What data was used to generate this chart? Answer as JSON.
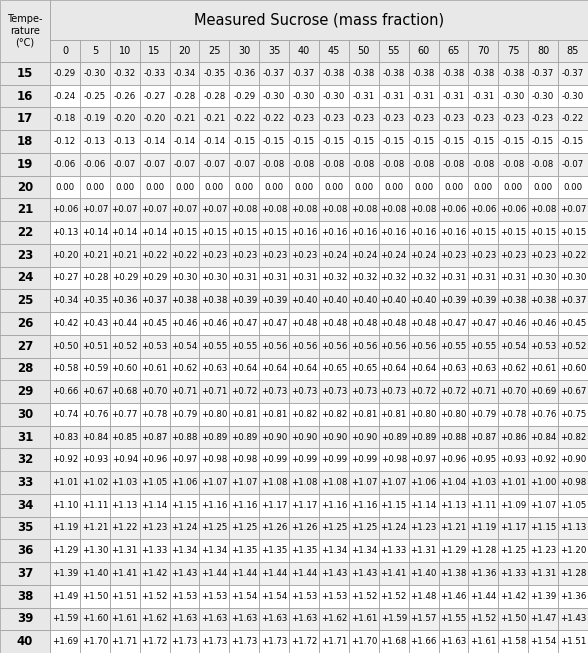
{
  "title": "Measured Sucrose (mass fraction)",
  "col_header_label": "Tempe-\nrature\n(°C)",
  "col_headers": [
    "0",
    "5",
    "10",
    "15",
    "20",
    "25",
    "30",
    "35",
    "40",
    "45",
    "50",
    "55",
    "60",
    "65",
    "70",
    "75",
    "80",
    "85"
  ],
  "row_headers": [
    "15",
    "16",
    "17",
    "18",
    "19",
    "20",
    "21",
    "22",
    "23",
    "24",
    "25",
    "26",
    "27",
    "28",
    "29",
    "30",
    "31",
    "32",
    "33",
    "34",
    "35",
    "36",
    "37",
    "38",
    "39",
    "40"
  ],
  "table_data": [
    [
      "-0.29",
      "-0.30",
      "-0.32",
      "-0.33",
      "-0.34",
      "-0.35",
      "-0.36",
      "-0.37",
      "-0.37",
      "-0.38",
      "-0.38",
      "-0.38",
      "-0.38",
      "-0.38",
      "-0.38",
      "-0.38",
      "-0.37",
      "-0.37"
    ],
    [
      "-0.24",
      "-0.25",
      "-0.26",
      "-0.27",
      "-0.28",
      "-0.28",
      "-0.29",
      "-0.30",
      "-0.30",
      "-0.30",
      "-0.31",
      "-0.31",
      "-0.31",
      "-0.31",
      "-0.31",
      "-0.30",
      "-0.30",
      "-0.30"
    ],
    [
      "-0.18",
      "-0.19",
      "-0.20",
      "-0.20",
      "-0.21",
      "-0.21",
      "-0.22",
      "-0.22",
      "-0.23",
      "-0.23",
      "-0.23",
      "-0.23",
      "-0.23",
      "-0.23",
      "-0.23",
      "-0.23",
      "-0.23",
      "-0.22"
    ],
    [
      "-0.12",
      "-0.13",
      "-0.13",
      "-0.14",
      "-0.14",
      "-0.14",
      "-0.15",
      "-0.15",
      "-0.15",
      "-0.15",
      "-0.15",
      "-0.15",
      "-0.15",
      "-0.15",
      "-0.15",
      "-0.15",
      "-0.15",
      "-0.15"
    ],
    [
      "-0.06",
      "-0.06",
      "-0.07",
      "-0.07",
      "-0.07",
      "-0.07",
      "-0.07",
      "-0.08",
      "-0.08",
      "-0.08",
      "-0.08",
      "-0.08",
      "-0.08",
      "-0.08",
      "-0.08",
      "-0.08",
      "-0.08",
      "-0.07"
    ],
    [
      "0.00",
      "0.00",
      "0.00",
      "0.00",
      "0.00",
      "0.00",
      "0.00",
      "0.00",
      "0.00",
      "0.00",
      "0.00",
      "0.00",
      "0.00",
      "0.00",
      "0.00",
      "0.00",
      "0.00",
      "0.00"
    ],
    [
      "+0.06",
      "+0.07",
      "+0.07",
      "+0.07",
      "+0.07",
      "+0.07",
      "+0.08",
      "+0.08",
      "+0.08",
      "+0.08",
      "+0.08",
      "+0.08",
      "+0.08",
      "+0.06",
      "+0.06",
      "+0.06",
      "+0.08",
      "+0.07"
    ],
    [
      "+0.13",
      "+0.14",
      "+0.14",
      "+0.14",
      "+0.15",
      "+0.15",
      "+0.15",
      "+0.15",
      "+0.16",
      "+0.16",
      "+0.16",
      "+0.16",
      "+0.16",
      "+0.16",
      "+0.15",
      "+0.15",
      "+0.15",
      "+0.15"
    ],
    [
      "+0.20",
      "+0.21",
      "+0.21",
      "+0.22",
      "+0.22",
      "+0.23",
      "+0.23",
      "+0.23",
      "+0.23",
      "+0.24",
      "+0.24",
      "+0.24",
      "+0.24",
      "+0.23",
      "+0.23",
      "+0.23",
      "+0.23",
      "+0.22"
    ],
    [
      "+0.27",
      "+0.28",
      "+0.29",
      "+0.29",
      "+0.30",
      "+0.30",
      "+0.31",
      "+0.31",
      "+0.31",
      "+0.32",
      "+0.32",
      "+0.32",
      "+0.32",
      "+0.31",
      "+0.31",
      "+0.31",
      "+0.30",
      "+0.30"
    ],
    [
      "+0.34",
      "+0.35",
      "+0.36",
      "+0.37",
      "+0.38",
      "+0.38",
      "+0.39",
      "+0.39",
      "+0.40",
      "+0.40",
      "+0.40",
      "+0.40",
      "+0.40",
      "+0.39",
      "+0.39",
      "+0.38",
      "+0.38",
      "+0.37"
    ],
    [
      "+0.42",
      "+0.43",
      "+0.44",
      "+0.45",
      "+0.46",
      "+0.46",
      "+0.47",
      "+0.47",
      "+0.48",
      "+0.48",
      "+0.48",
      "+0.48",
      "+0.48",
      "+0.47",
      "+0.47",
      "+0.46",
      "+0.46",
      "+0.45"
    ],
    [
      "+0.50",
      "+0.51",
      "+0.52",
      "+0.53",
      "+0.54",
      "+0.55",
      "+0.55",
      "+0.56",
      "+0.56",
      "+0.56",
      "+0.56",
      "+0.56",
      "+0.56",
      "+0.55",
      "+0.55",
      "+0.54",
      "+0.53",
      "+0.52"
    ],
    [
      "+0.58",
      "+0.59",
      "+0.60",
      "+0.61",
      "+0.62",
      "+0.63",
      "+0.64",
      "+0.64",
      "+0.64",
      "+0.65",
      "+0.65",
      "+0.64",
      "+0.64",
      "+0.63",
      "+0.63",
      "+0.62",
      "+0.61",
      "+0.60"
    ],
    [
      "+0.66",
      "+0.67",
      "+0.68",
      "+0.70",
      "+0.71",
      "+0.71",
      "+0.72",
      "+0.73",
      "+0.73",
      "+0.73",
      "+0.73",
      "+0.73",
      "+0.72",
      "+0.72",
      "+0.71",
      "+0.70",
      "+0.69",
      "+0.67"
    ],
    [
      "+0.74",
      "+0.76",
      "+0.77",
      "+0.78",
      "+0.79",
      "+0.80",
      "+0.81",
      "+0.81",
      "+0.82",
      "+0.82",
      "+0.81",
      "+0.81",
      "+0.80",
      "+0.80",
      "+0.79",
      "+0.78",
      "+0.76",
      "+0.75"
    ],
    [
      "+0.83",
      "+0.84",
      "+0.85",
      "+0.87",
      "+0.88",
      "+0.89",
      "+0.89",
      "+0.90",
      "+0.90",
      "+0.90",
      "+0.90",
      "+0.89",
      "+0.89",
      "+0.88",
      "+0.87",
      "+0.86",
      "+0.84",
      "+0.82"
    ],
    [
      "+0.92",
      "+0.93",
      "+0.94",
      "+0.96",
      "+0.97",
      "+0.98",
      "+0.98",
      "+0.99",
      "+0.99",
      "+0.99",
      "+0.99",
      "+0.98",
      "+0.97",
      "+0.96",
      "+0.95",
      "+0.93",
      "+0.92",
      "+0.90"
    ],
    [
      "+1.01",
      "+1.02",
      "+1.03",
      "+1.05",
      "+1.06",
      "+1.07",
      "+1.07",
      "+1.08",
      "+1.08",
      "+1.08",
      "+1.07",
      "+1.07",
      "+1.06",
      "+1.04",
      "+1.03",
      "+1.01",
      "+1.00",
      "+0.98"
    ],
    [
      "+1.10",
      "+1.11",
      "+1.13",
      "+1.14",
      "+1.15",
      "+1.16",
      "+1.16",
      "+1.17",
      "+1.17",
      "+1.16",
      "+1.16",
      "+1.15",
      "+1.14",
      "+1.13",
      "+1.11",
      "+1.09",
      "+1.07",
      "+1.05"
    ],
    [
      "+1.19",
      "+1.21",
      "+1.22",
      "+1.23",
      "+1.24",
      "+1.25",
      "+1.25",
      "+1.26",
      "+1.26",
      "+1.25",
      "+1.25",
      "+1.24",
      "+1.23",
      "+1.21",
      "+1.19",
      "+1.17",
      "+1.15",
      "+1.13"
    ],
    [
      "+1.29",
      "+1.30",
      "+1.31",
      "+1.33",
      "+1.34",
      "+1.34",
      "+1.35",
      "+1.35",
      "+1.35",
      "+1.34",
      "+1.34",
      "+1.33",
      "+1.31",
      "+1.29",
      "+1.28",
      "+1.25",
      "+1.23",
      "+1.20"
    ],
    [
      "+1.39",
      "+1.40",
      "+1.41",
      "+1.42",
      "+1.43",
      "+1.44",
      "+1.44",
      "+1.44",
      "+1.44",
      "+1.43",
      "+1.43",
      "+1.41",
      "+1.40",
      "+1.38",
      "+1.36",
      "+1.33",
      "+1.31",
      "+1.28"
    ],
    [
      "+1.49",
      "+1.50",
      "+1.51",
      "+1.52",
      "+1.53",
      "+1.53",
      "+1.54",
      "+1.54",
      "+1.53",
      "+1.53",
      "+1.52",
      "+1.52",
      "+1.48",
      "+1.46",
      "+1.44",
      "+1.42",
      "+1.39",
      "+1.36"
    ],
    [
      "+1.59",
      "+1.60",
      "+1.61",
      "+1.62",
      "+1.63",
      "+1.63",
      "+1.63",
      "+1.63",
      "+1.63",
      "+1.62",
      "+1.61",
      "+1.59",
      "+1.57",
      "+1.55",
      "+1.52",
      "+1.50",
      "+1.47",
      "+1.43"
    ],
    [
      "+1.69",
      "+1.70",
      "+1.71",
      "+1.72",
      "+1.73",
      "+1.73",
      "+1.73",
      "+1.73",
      "+1.72",
      "+1.71",
      "+1.70",
      "+1.68",
      "+1.66",
      "+1.63",
      "+1.61",
      "+1.58",
      "+1.54",
      "+1.51"
    ]
  ],
  "header_bg": "#e8e8e8",
  "row_header_bg": "#e8e8e8",
  "title_bg": "#e8e8e8",
  "even_row_bg": "#f0f0f0",
  "odd_row_bg": "#ffffff",
  "border_color": "#999999",
  "text_color": "#000000",
  "title_fontsize": 10.5,
  "header_fontsize": 7.0,
  "cell_fontsize": 6.2,
  "row_header_fontsize": 8.5,
  "temp_label_fontsize": 7.0,
  "fig_width": 5.88,
  "fig_height": 6.53,
  "dpi": 100
}
